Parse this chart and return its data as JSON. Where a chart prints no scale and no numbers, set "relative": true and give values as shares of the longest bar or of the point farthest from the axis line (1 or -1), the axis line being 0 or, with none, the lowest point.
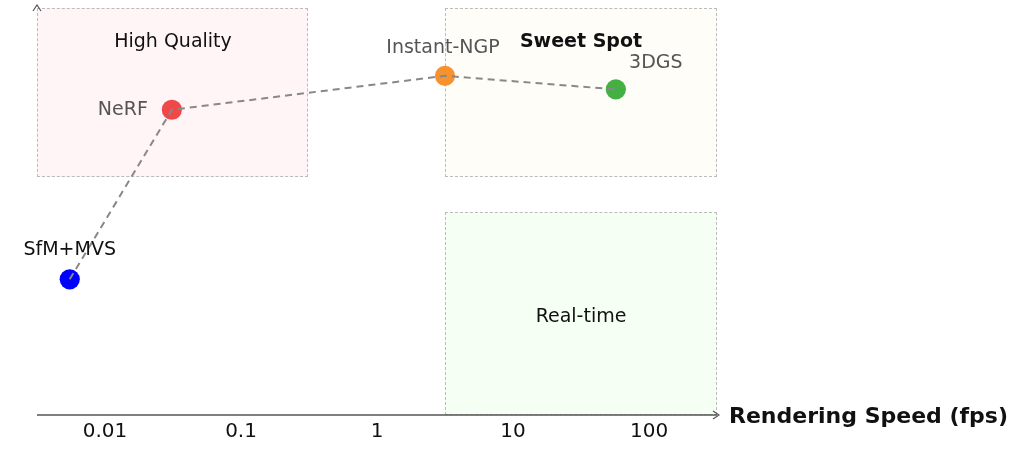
{
  "chart_data": {
    "type": "scatter",
    "relative": true,
    "log": "x",
    "xlabel": "Rendering Speed (fps)",
    "xlim": [
      0.00316,
      316
    ],
    "xticks": [
      0.01,
      0.1,
      1,
      10,
      100
    ],
    "grid": false,
    "legend": false,
    "marker": "circle",
    "annotations": [
      "High Quality",
      "Sweet Spot",
      "Real-time"
    ],
    "series": [
      {
        "type": "line",
        "color": "#888888",
        "line_style": "dashed",
        "marker": "none",
        "x": [
          0.0055,
          0.031,
          3.16,
          57
        ],
        "values": [
          0.4,
          0.9,
          1,
          0.96
        ]
      },
      {
        "name": "SfM+MVS",
        "color": "#0000ff",
        "x": [
          0.0055
        ],
        "values": [
          0.4
        ]
      },
      {
        "name": "NeRF",
        "color": "#f04848",
        "x": [
          0.031
        ],
        "values": [
          0.9
        ]
      },
      {
        "name": "Instant-NGP",
        "color": "#f7922e",
        "x": [
          3.16
        ],
        "values": [
          1
        ]
      },
      {
        "name": "3DGS",
        "color": "#44b044",
        "x": [
          57
        ],
        "values": [
          0.96
        ]
      }
    ]
  }
}
